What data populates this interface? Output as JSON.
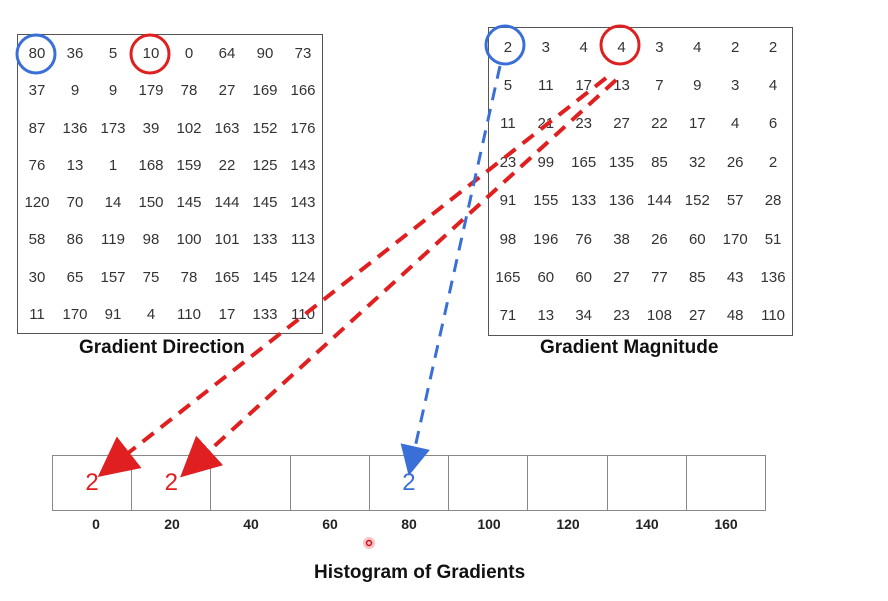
{
  "direction": {
    "caption": "Gradient Direction",
    "rows": [
      [
        "80",
        "36",
        "5",
        "10",
        "0",
        "64",
        "90",
        "73"
      ],
      [
        "37",
        "9",
        "9",
        "179",
        "78",
        "27",
        "169",
        "166"
      ],
      [
        "87",
        "136",
        "173",
        "39",
        "102",
        "163",
        "152",
        "176"
      ],
      [
        "76",
        "13",
        "1",
        "168",
        "159",
        "22",
        "125",
        "143"
      ],
      [
        "120",
        "70",
        "14",
        "150",
        "145",
        "144",
        "145",
        "143"
      ],
      [
        "58",
        "86",
        "119",
        "98",
        "100",
        "101",
        "133",
        "113"
      ],
      [
        "30",
        "65",
        "157",
        "75",
        "78",
        "165",
        "145",
        "124"
      ],
      [
        "11",
        "170",
        "91",
        "4",
        "110",
        "17",
        "133",
        "110"
      ]
    ]
  },
  "magnitude": {
    "caption": "Gradient Magnitude",
    "rows": [
      [
        "2",
        "3",
        "4",
        "4",
        "3",
        "4",
        "2",
        "2"
      ],
      [
        "5",
        "11",
        "17",
        "13",
        "7",
        "9",
        "3",
        "4"
      ],
      [
        "11",
        "21",
        "23",
        "27",
        "22",
        "17",
        "4",
        "6"
      ],
      [
        "23",
        "99",
        "165",
        "135",
        "85",
        "32",
        "26",
        "2"
      ],
      [
        "91",
        "155",
        "133",
        "136",
        "144",
        "152",
        "57",
        "28"
      ],
      [
        "98",
        "196",
        "76",
        "38",
        "26",
        "60",
        "170",
        "51"
      ],
      [
        "165",
        "60",
        "60",
        "27",
        "77",
        "85",
        "43",
        "136"
      ],
      [
        "71",
        "13",
        "34",
        "23",
        "108",
        "27",
        "48",
        "110"
      ]
    ]
  },
  "histogram": {
    "caption": "Histogram of Gradients",
    "bins": [
      "0",
      "20",
      "40",
      "60",
      "80",
      "100",
      "120",
      "140",
      "160"
    ],
    "values": [
      "2",
      "2",
      "",
      "",
      "2",
      "",
      "",
      "",
      ""
    ],
    "value_colors": [
      "#e02020",
      "#e02020",
      "",
      "",
      "#3a6fd8",
      "",
      "",
      "",
      ""
    ]
  },
  "colors": {
    "blue": "#3a6fd8",
    "red": "#e02020"
  }
}
